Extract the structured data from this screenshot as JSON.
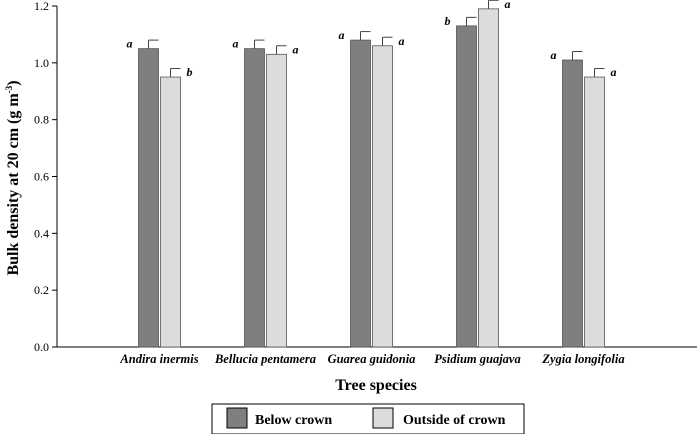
{
  "chart_data": {
    "type": "bar",
    "categories": [
      "Andira inermis",
      "Bellucia pentamera",
      "Guarea guidonia",
      "Psidium guajava",
      "Zygia longifolia"
    ],
    "series": [
      {
        "name": "Below crown",
        "color": "#7f7f7f",
        "values": [
          1.05,
          1.05,
          1.08,
          1.13,
          1.01
        ],
        "errors": [
          0.03,
          0.03,
          0.03,
          0.03,
          0.03
        ],
        "letters": [
          "a",
          "a",
          "a",
          "b",
          "a"
        ]
      },
      {
        "name": "Outside of crown",
        "color": "#dcdcdc",
        "values": [
          0.95,
          1.03,
          1.06,
          1.19,
          0.95
        ],
        "errors": [
          0.03,
          0.03,
          0.03,
          0.03,
          0.03
        ],
        "letters": [
          "b",
          "a",
          "a",
          "a",
          "a"
        ]
      }
    ],
    "xlabel": "Tree species",
    "ylabel_main": "Bulk density at 20 cm (g m",
    "ylabel_sup": "-3",
    "ylabel_end": ")",
    "ylim": [
      0,
      1.2
    ],
    "yticks": [
      "0.0",
      "0.2",
      "0.4",
      "0.6",
      "0.8",
      "1.0",
      "1.2"
    ],
    "ytick_values": [
      0,
      0.2,
      0.4,
      0.6,
      0.8,
      1.0,
      1.2
    ],
    "grid": false,
    "legend_position": "bottom-center"
  }
}
